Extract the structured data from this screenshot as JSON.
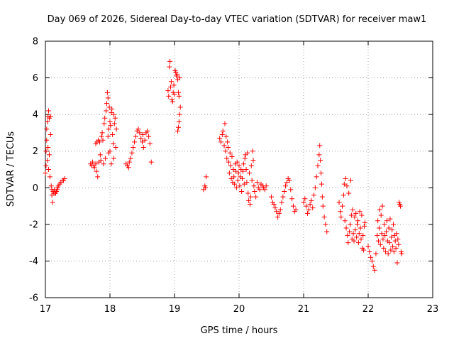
{
  "chart_data": {
    "type": "scatter",
    "title": "Day 069 of 2026, Sidereal Day-to-day VTEC variation (SDTVAR) for receiver maw1",
    "xlabel": "GPS time / hours",
    "ylabel": "SDTVAR / TECUs",
    "xlim": [
      17,
      23
    ],
    "ylim": [
      -6,
      8
    ],
    "x_ticks": [
      17,
      18,
      19,
      20,
      21,
      22,
      23
    ],
    "y_ticks": [
      -6,
      -4,
      -2,
      0,
      2,
      4,
      6,
      8
    ],
    "x_tick_labels": [
      "17",
      "18",
      "19",
      "20",
      "21",
      "22",
      "23"
    ],
    "y_tick_labels": [
      "-6",
      "-4",
      "-2",
      "0",
      "2",
      "4",
      "6",
      "8"
    ],
    "grid": true,
    "marker": "+",
    "color": "#ff0000",
    "series": [
      {
        "name": "SDTVAR",
        "points": [
          [
            17.0,
            0.8
          ],
          [
            17.01,
            1.2
          ],
          [
            17.01,
            2.0
          ],
          [
            17.02,
            2.6
          ],
          [
            17.02,
            3.2
          ],
          [
            17.03,
            3.6
          ],
          [
            17.03,
            1.5
          ],
          [
            17.04,
            2.2
          ],
          [
            17.04,
            3.9
          ],
          [
            17.05,
            1.0
          ],
          [
            17.05,
            4.2
          ],
          [
            17.06,
            3.8
          ],
          [
            17.06,
            1.8
          ],
          [
            17.07,
            0.6
          ],
          [
            17.08,
            3.9
          ],
          [
            17.08,
            2.9
          ],
          [
            17.09,
            0.1
          ],
          [
            17.1,
            -0.1
          ],
          [
            17.1,
            -0.4
          ],
          [
            17.11,
            -0.8
          ],
          [
            17.12,
            -0.2
          ],
          [
            17.13,
            -0.3
          ],
          [
            17.14,
            -0.1
          ],
          [
            17.15,
            -0.3
          ],
          [
            17.16,
            -0.3
          ],
          [
            17.17,
            -0.2
          ],
          [
            17.18,
            -0.1
          ],
          [
            17.19,
            0.0
          ],
          [
            17.2,
            0.1
          ],
          [
            17.22,
            0.2
          ],
          [
            17.24,
            0.3
          ],
          [
            17.26,
            0.4
          ],
          [
            17.28,
            0.4
          ],
          [
            17.3,
            0.5
          ],
          [
            17.7,
            1.3
          ],
          [
            17.72,
            1.2
          ],
          [
            17.73,
            1.4
          ],
          [
            17.75,
            1.2
          ],
          [
            17.76,
            1.1
          ],
          [
            17.78,
            1.3
          ],
          [
            17.78,
            2.4
          ],
          [
            17.79,
            0.9
          ],
          [
            17.8,
            2.5
          ],
          [
            17.81,
            0.6
          ],
          [
            17.82,
            2.6
          ],
          [
            17.83,
            1.4
          ],
          [
            17.84,
            2.5
          ],
          [
            17.85,
            1.8
          ],
          [
            17.86,
            1.5
          ],
          [
            17.87,
            2.8
          ],
          [
            17.88,
            3.0
          ],
          [
            17.89,
            2.6
          ],
          [
            17.9,
            1.3
          ],
          [
            17.91,
            3.5
          ],
          [
            17.92,
            3.8
          ],
          [
            17.93,
            1.6
          ],
          [
            17.94,
            4.2
          ],
          [
            17.95,
            4.6
          ],
          [
            17.96,
            5.2
          ],
          [
            17.97,
            4.9
          ],
          [
            17.97,
            2.8
          ],
          [
            17.98,
            3.2
          ],
          [
            17.98,
            1.9
          ],
          [
            17.99,
            4.4
          ],
          [
            18.0,
            3.6
          ],
          [
            18.01,
            3.4
          ],
          [
            18.02,
            4.1
          ],
          [
            18.03,
            4.3
          ],
          [
            18.04,
            2.9
          ],
          [
            18.05,
            2.4
          ],
          [
            18.06,
            4.0
          ],
          [
            18.07,
            3.5
          ],
          [
            18.08,
            3.8
          ],
          [
            18.09,
            2.2
          ],
          [
            18.1,
            3.2
          ],
          [
            18.06,
            1.6
          ],
          [
            18.02,
            1.3
          ],
          [
            18.0,
            2.0
          ],
          [
            18.25,
            1.3
          ],
          [
            18.27,
            1.2
          ],
          [
            18.29,
            1.1
          ],
          [
            18.3,
            1.4
          ],
          [
            18.32,
            1.6
          ],
          [
            18.34,
            1.9
          ],
          [
            18.36,
            2.2
          ],
          [
            18.38,
            2.5
          ],
          [
            18.4,
            2.8
          ],
          [
            18.42,
            3.1
          ],
          [
            18.44,
            3.2
          ],
          [
            18.46,
            3.0
          ],
          [
            18.48,
            2.7
          ],
          [
            18.5,
            2.5
          ],
          [
            18.51,
            2.9
          ],
          [
            18.52,
            2.2
          ],
          [
            18.54,
            2.6
          ],
          [
            18.56,
            3.0
          ],
          [
            18.58,
            3.1
          ],
          [
            18.6,
            2.8
          ],
          [
            18.62,
            2.4
          ],
          [
            18.64,
            1.4
          ],
          [
            18.9,
            5.3
          ],
          [
            18.91,
            5.0
          ],
          [
            18.92,
            6.6
          ],
          [
            18.93,
            6.9
          ],
          [
            18.94,
            5.5
          ],
          [
            18.95,
            5.8
          ],
          [
            18.96,
            4.8
          ],
          [
            18.97,
            4.7
          ],
          [
            18.98,
            5.2
          ],
          [
            18.99,
            5.6
          ],
          [
            19.0,
            5.1
          ],
          [
            19.01,
            6.4
          ],
          [
            19.02,
            6.3
          ],
          [
            19.03,
            6.1
          ],
          [
            19.04,
            6.2
          ],
          [
            19.05,
            5.9
          ],
          [
            19.06,
            5.2
          ],
          [
            19.07,
            5.0
          ],
          [
            19.08,
            6.0
          ],
          [
            19.05,
            3.1
          ],
          [
            19.06,
            3.3
          ],
          [
            19.07,
            3.6
          ],
          [
            19.08,
            4.0
          ],
          [
            19.09,
            4.4
          ],
          [
            19.45,
            -0.1
          ],
          [
            19.47,
            0.1
          ],
          [
            19.49,
            0.6
          ],
          [
            19.48,
            0.0
          ],
          [
            19.7,
            2.7
          ],
          [
            19.72,
            2.5
          ],
          [
            19.74,
            2.9
          ],
          [
            19.75,
            3.1
          ],
          [
            19.77,
            2.3
          ],
          [
            19.78,
            3.5
          ],
          [
            19.79,
            2.0
          ],
          [
            19.8,
            2.8
          ],
          [
            19.81,
            1.6
          ],
          [
            19.82,
            2.5
          ],
          [
            19.83,
            2.2
          ],
          [
            19.84,
            1.4
          ],
          [
            19.85,
            0.8
          ],
          [
            19.86,
            1.9
          ],
          [
            19.87,
            1.2
          ],
          [
            19.88,
            0.5
          ],
          [
            19.89,
            1.7
          ],
          [
            19.9,
            0.3
          ],
          [
            19.91,
            1.0
          ],
          [
            19.92,
            0.6
          ],
          [
            19.93,
            0.2
          ],
          [
            19.94,
            1.3
          ],
          [
            19.95,
            0.9
          ],
          [
            19.96,
            0.0
          ],
          [
            19.97,
            1.4
          ],
          [
            19.98,
            0.4
          ],
          [
            19.99,
            0.8
          ],
          [
            20.0,
            1.2
          ],
          [
            20.01,
            0.1
          ],
          [
            20.02,
            0.6
          ],
          [
            20.03,
            1.0
          ],
          [
            20.04,
            -0.2
          ],
          [
            20.05,
            0.5
          ],
          [
            20.06,
            0.9
          ],
          [
            20.07,
            1.3
          ],
          [
            20.08,
            0.2
          ],
          [
            20.09,
            1.6
          ],
          [
            20.1,
            1.8
          ],
          [
            20.11,
            1.0
          ],
          [
            20.12,
            0.3
          ],
          [
            20.13,
            1.9
          ],
          [
            20.14,
            -0.3
          ],
          [
            20.15,
            -0.7
          ],
          [
            20.16,
            0.8
          ],
          [
            20.17,
            -0.9
          ],
          [
            20.18,
            -0.5
          ],
          [
            20.19,
            1.2
          ],
          [
            20.2,
            0.4
          ],
          [
            20.21,
            2.0
          ],
          [
            20.22,
            1.5
          ],
          [
            20.23,
            0.1
          ],
          [
            20.24,
            -0.2
          ],
          [
            20.26,
            -0.5
          ],
          [
            20.28,
            0.3
          ],
          [
            20.3,
            0.0
          ],
          [
            20.32,
            -0.1
          ],
          [
            20.34,
            0.2
          ],
          [
            20.36,
            0.1
          ],
          [
            20.38,
            0.0
          ],
          [
            20.4,
            -0.1
          ],
          [
            20.42,
            0.1
          ],
          [
            20.5,
            -0.5
          ],
          [
            20.52,
            -0.8
          ],
          [
            20.54,
            -0.9
          ],
          [
            20.56,
            -1.1
          ],
          [
            20.58,
            -1.3
          ],
          [
            20.6,
            -1.6
          ],
          [
            20.62,
            -1.4
          ],
          [
            20.64,
            -1.2
          ],
          [
            20.66,
            -0.8
          ],
          [
            20.68,
            -0.5
          ],
          [
            20.7,
            -0.2
          ],
          [
            20.72,
            0.1
          ],
          [
            20.74,
            0.3
          ],
          [
            20.76,
            0.5
          ],
          [
            20.78,
            0.4
          ],
          [
            20.8,
            -0.1
          ],
          [
            20.82,
            -0.6
          ],
          [
            20.84,
            -1.0
          ],
          [
            20.86,
            -1.3
          ],
          [
            20.88,
            -1.2
          ],
          [
            21.0,
            -0.8
          ],
          [
            21.02,
            -0.6
          ],
          [
            21.04,
            -1.0
          ],
          [
            21.06,
            -1.4
          ],
          [
            21.08,
            -1.2
          ],
          [
            21.1,
            -0.9
          ],
          [
            21.12,
            -0.7
          ],
          [
            21.14,
            -1.1
          ],
          [
            21.16,
            -0.4
          ],
          [
            21.18,
            0.0
          ],
          [
            21.2,
            0.6
          ],
          [
            21.22,
            1.2
          ],
          [
            21.24,
            1.8
          ],
          [
            21.25,
            2.3
          ],
          [
            21.26,
            1.5
          ],
          [
            21.27,
            0.8
          ],
          [
            21.28,
            0.2
          ],
          [
            21.29,
            -0.5
          ],
          [
            21.3,
            -1.0
          ],
          [
            21.32,
            -1.6
          ],
          [
            21.34,
            -2.0
          ],
          [
            21.36,
            -2.4
          ],
          [
            21.55,
            -0.8
          ],
          [
            21.57,
            -1.3
          ],
          [
            21.58,
            -1.6
          ],
          [
            21.6,
            -1.0
          ],
          [
            21.62,
            -0.4
          ],
          [
            21.63,
            0.2
          ],
          [
            21.64,
            -1.8
          ],
          [
            21.65,
            0.5
          ],
          [
            21.66,
            -2.2
          ],
          [
            21.67,
            0.1
          ],
          [
            21.68,
            -2.6
          ],
          [
            21.69,
            -3.0
          ],
          [
            21.7,
            -0.3
          ],
          [
            21.71,
            -2.4
          ],
          [
            21.72,
            -2.0
          ],
          [
            21.73,
            0.4
          ],
          [
            21.74,
            -1.5
          ],
          [
            21.75,
            -2.8
          ],
          [
            21.76,
            -1.2
          ],
          [
            21.77,
            -2.5
          ],
          [
            21.78,
            -2.9
          ],
          [
            21.79,
            -1.6
          ],
          [
            21.8,
            -2.3
          ],
          [
            21.81,
            -1.4
          ],
          [
            21.82,
            -2.7
          ],
          [
            21.83,
            -2.0
          ],
          [
            21.84,
            -1.8
          ],
          [
            21.85,
            -3.0
          ],
          [
            21.86,
            -2.5
          ],
          [
            21.87,
            -1.3
          ],
          [
            21.88,
            -2.2
          ],
          [
            21.89,
            -2.8
          ],
          [
            21.9,
            -1.5
          ],
          [
            21.91,
            -3.3
          ],
          [
            21.92,
            -2.6
          ],
          [
            21.93,
            -3.4
          ],
          [
            21.94,
            -2.1
          ],
          [
            21.95,
            -1.9
          ],
          [
            22.0,
            -3.2
          ],
          [
            22.02,
            -3.5
          ],
          [
            22.04,
            -3.8
          ],
          [
            22.06,
            -4.0
          ],
          [
            22.08,
            -4.3
          ],
          [
            22.1,
            -4.5
          ],
          [
            22.12,
            -3.6
          ],
          [
            22.14,
            -2.6
          ],
          [
            22.15,
            -1.8
          ],
          [
            22.16,
            -2.9
          ],
          [
            22.17,
            -2.2
          ],
          [
            22.18,
            -1.2
          ],
          [
            22.19,
            -3.1
          ],
          [
            22.2,
            -1.5
          ],
          [
            22.21,
            -2.5
          ],
          [
            22.22,
            -1.0
          ],
          [
            22.23,
            -2.8
          ],
          [
            22.24,
            -3.3
          ],
          [
            22.25,
            -2.0
          ],
          [
            22.26,
            -2.6
          ],
          [
            22.27,
            -3.5
          ],
          [
            22.28,
            -2.4
          ],
          [
            22.29,
            -1.8
          ],
          [
            22.3,
            -2.9
          ],
          [
            22.31,
            -3.6
          ],
          [
            22.32,
            -2.2
          ],
          [
            22.33,
            -3.0
          ],
          [
            22.34,
            -1.7
          ],
          [
            22.35,
            -3.4
          ],
          [
            22.36,
            -2.7
          ],
          [
            22.37,
            -2.3
          ],
          [
            22.38,
            -3.2
          ],
          [
            22.39,
            -2.0
          ],
          [
            22.4,
            -3.5
          ],
          [
            22.41,
            -2.6
          ],
          [
            22.42,
            -2.9
          ],
          [
            22.43,
            -3.3
          ],
          [
            22.44,
            -2.5
          ],
          [
            22.45,
            -4.1
          ],
          [
            22.46,
            -2.8
          ],
          [
            22.47,
            -3.1
          ],
          [
            22.48,
            -0.8
          ],
          [
            22.49,
            -0.9
          ],
          [
            22.5,
            -1.0
          ],
          [
            22.51,
            -3.5
          ],
          [
            22.52,
            -3.6
          ]
        ]
      }
    ]
  }
}
